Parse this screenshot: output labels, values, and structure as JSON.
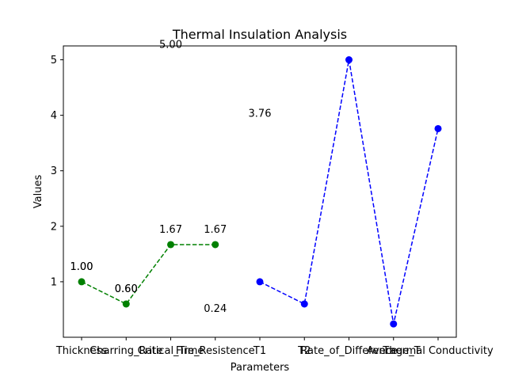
{
  "chart_data": {
    "type": "line",
    "title": "Thermal Insulation Analysis",
    "xlabel": "Parameters",
    "ylabel": "Values",
    "categories": [
      "Thickness",
      "Charring_Rate",
      "Critical_Time",
      "Fire_Resistence",
      "T1",
      "T2",
      "Rate_of_Difference",
      "Average_T",
      "Thermal Conductivity"
    ],
    "ylim": [
      0.0,
      5.25
    ],
    "yticks": [
      1,
      2,
      3,
      4,
      5
    ],
    "grid": false,
    "series": [
      {
        "color": "#008000",
        "style": "dashed-with-circle-markers",
        "points": [
          {
            "category": "Thickness",
            "value": 1.0
          },
          {
            "category": "Charring_Rate",
            "value": 0.6
          },
          {
            "category": "Critical_Time",
            "value": 1.67
          },
          {
            "category": "Fire_Resistence",
            "value": 1.67
          }
        ]
      },
      {
        "color": "#0000ff",
        "style": "dashed-with-circle-markers",
        "points": [
          {
            "category": "T1",
            "value": 1.0
          },
          {
            "category": "T2",
            "value": 0.6
          },
          {
            "category": "Rate_of_Difference",
            "value": 5.0
          },
          {
            "category": "Average_T",
            "value": 0.24
          },
          {
            "category": "Thermal Conductivity",
            "value": 3.76
          }
        ]
      }
    ],
    "annotations": [
      {
        "text": "1.00",
        "category": "Thickness",
        "value": 1.0
      },
      {
        "text": "1.00",
        "category": "Thickness",
        "value": 1.0
      },
      {
        "text": "0.60",
        "category": "Charring_Rate",
        "value": 0.6
      },
      {
        "text": "0.60",
        "category": "Charring_Rate",
        "value": 0.6
      },
      {
        "text": "1.67",
        "category": "Critical_Time",
        "value": 1.67
      },
      {
        "text": "1.67",
        "category": "Fire_Resistence",
        "value": 1.67
      },
      {
        "text": "5.00",
        "category": "Critical_Time",
        "value": 5.0
      },
      {
        "text": "0.24",
        "category": "Fire_Resistence",
        "value": 0.24
      },
      {
        "text": "3.76",
        "category": "T1",
        "value": 3.76
      }
    ]
  }
}
